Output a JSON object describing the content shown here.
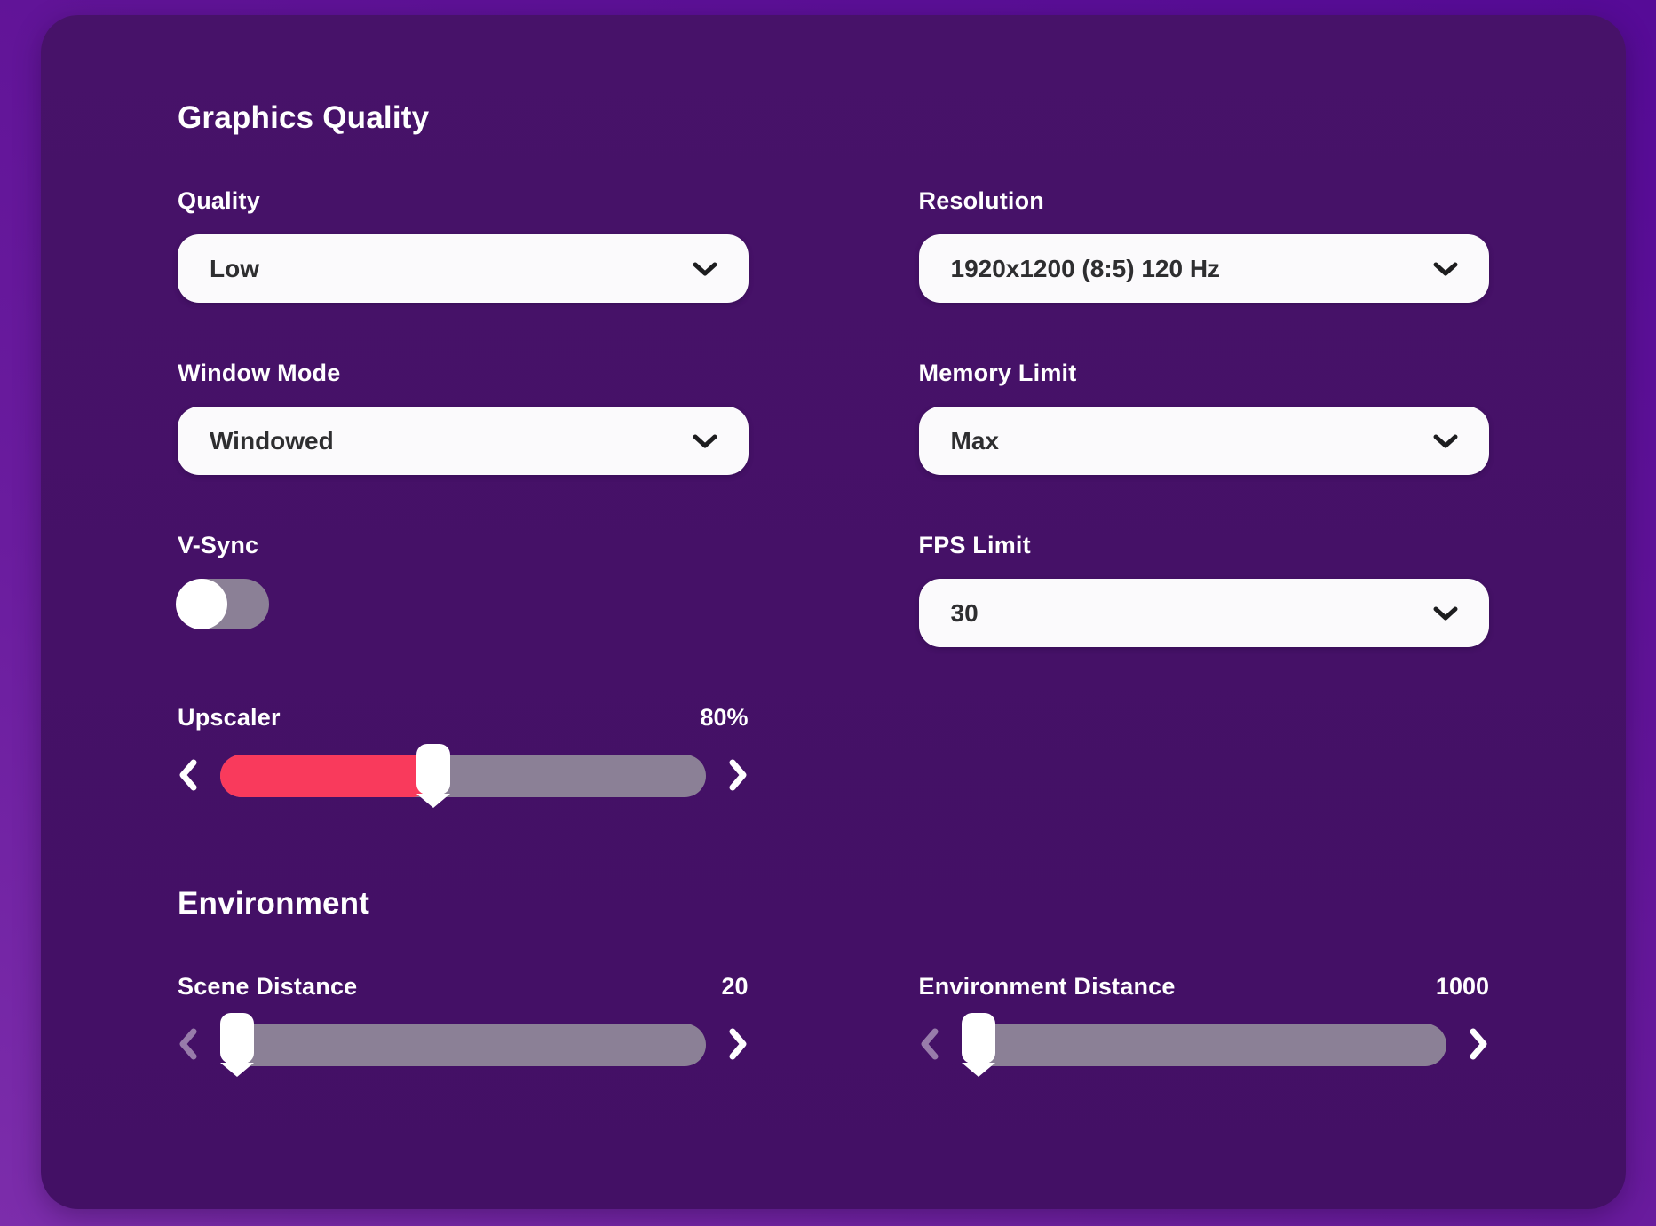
{
  "graphics_quality": {
    "title": "Graphics Quality",
    "quality": {
      "label": "Quality",
      "value": "Low"
    },
    "resolution": {
      "label": "Resolution",
      "value": "1920x1200 (8:5) 120 Hz"
    },
    "window_mode": {
      "label": "Window Mode",
      "value": "Windowed"
    },
    "memory_limit": {
      "label": "Memory Limit",
      "value": "Max"
    },
    "vsync": {
      "label": "V-Sync",
      "enabled": false
    },
    "fps_limit": {
      "label": "FPS Limit",
      "value": "30"
    },
    "upscaler": {
      "label": "Upscaler",
      "value": "80%",
      "fill_percent": 44
    }
  },
  "environment": {
    "title": "Environment",
    "scene_distance": {
      "label": "Scene Distance",
      "value": "20",
      "fill_percent": 0
    },
    "environment_distance": {
      "label": "Environment Distance",
      "value": "1000",
      "fill_percent": 0
    }
  },
  "colors": {
    "background_top": "#560b97",
    "background_bottom": "#7c2dab",
    "panel": "#451168",
    "control_background": "#fbfafc",
    "control_text": "#2e2e30",
    "track_gray": "#8b8096",
    "slider_fill_red": "#f93a5c",
    "label_text": "#ffffff"
  },
  "icons": {
    "dropdown": "chevron-down",
    "slider_decrease": "chevron-left",
    "slider_increase": "chevron-right"
  }
}
